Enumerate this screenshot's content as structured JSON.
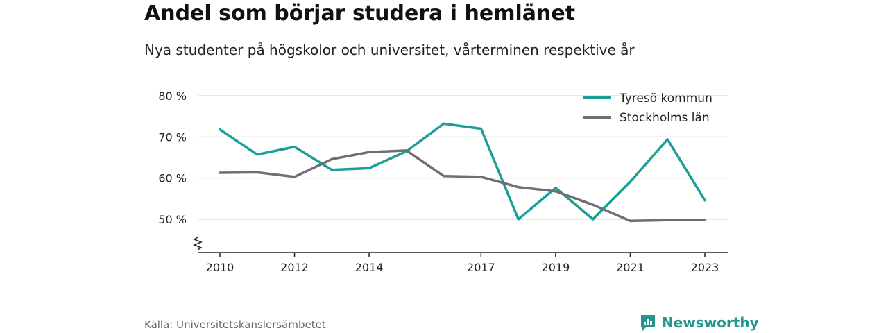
{
  "title": "Andel som börjar studera i hemlänet",
  "subtitle": "Nya studenter på högskolor och universitet, vårterminen respektive år",
  "source": "Källa: Universitetskanslersämbetet",
  "brand": "Newsworthy",
  "chart_data": {
    "type": "line",
    "title": "Andel som börjar studera i hemlänet",
    "subtitle": "Nya studenter på högskolor och universitet, vårterminen respektive år",
    "x": [
      2010,
      2011,
      2012,
      2013,
      2014,
      2015,
      2016,
      2017,
      2018,
      2019,
      2020,
      2021,
      2022,
      2023
    ],
    "xticks": [
      2010,
      2012,
      2014,
      2017,
      2019,
      2021,
      2023
    ],
    "yticks": [
      50,
      60,
      70,
      80
    ],
    "ytick_labels": [
      "50 %",
      "60 %",
      "70 %",
      "80 %"
    ],
    "ylim": [
      50,
      80
    ],
    "y_axis_break": true,
    "grid": true,
    "legend_position": "top-right",
    "series": [
      {
        "name": "Tyresö kommun",
        "color": "#1a9e96",
        "values": [
          71.8,
          65.7,
          67.6,
          62.0,
          62.4,
          66.5,
          73.2,
          72.0,
          50.0,
          57.6,
          50.0,
          59.1,
          69.4,
          54.6
        ]
      },
      {
        "name": "Stockholms län",
        "color": "#6e6e73",
        "values": [
          61.3,
          61.4,
          60.3,
          64.6,
          66.3,
          66.7,
          60.5,
          60.3,
          57.8,
          56.8,
          53.5,
          49.6,
          49.8,
          49.8
        ]
      }
    ]
  }
}
